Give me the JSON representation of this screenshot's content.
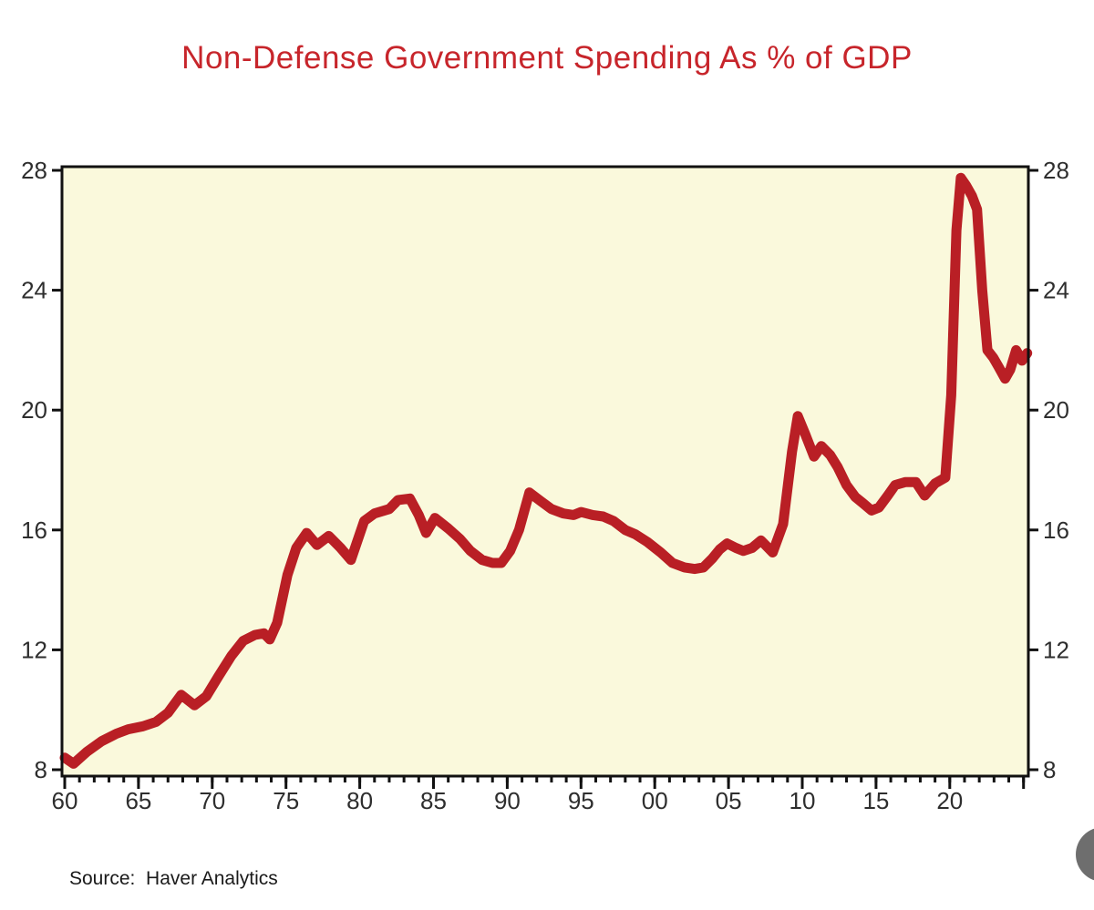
{
  "page": {
    "title": "Non-Defense Government Spending As % of GDP",
    "source_label": "Source:  Haver Analytics"
  },
  "chart_data": {
    "type": "line",
    "title": "Non-Defense Government Spending As % of GDP",
    "source": "Source:  Haver Analytics",
    "title_color": "#c7252b",
    "line_color": "#b91f25",
    "plot_bg_color": "#faf9dc",
    "frame_color": "#111111",
    "tick_label_color": "#2e2e2e",
    "grid": false,
    "legend": false,
    "x_axis": {
      "label": "",
      "min_year": 1960,
      "max_year": 2025.3,
      "major_tick_years": [
        1960,
        1965,
        1970,
        1975,
        1980,
        1985,
        1990,
        1995,
        2000,
        2005,
        2010,
        2015,
        2020,
        2025
      ],
      "major_tick_labels": [
        "60",
        "65",
        "70",
        "75",
        "80",
        "85",
        "90",
        "95",
        "00",
        "05",
        "10",
        "15",
        "20",
        ""
      ],
      "minor_tick_step_years": 1
    },
    "y_axis": {
      "label": "",
      "min": 8,
      "max": 28,
      "ticks": [
        8,
        12,
        16,
        20,
        24,
        28
      ],
      "tick_labels": [
        "8",
        "12",
        "16",
        "20",
        "24",
        "28"
      ],
      "sides": "both"
    },
    "series": [
      {
        "name": "Non-Defense Government Spending As % of GDP",
        "points": [
          [
            1960.0,
            8.4
          ],
          [
            1960.6,
            8.2
          ],
          [
            1961.5,
            8.6
          ],
          [
            1962.5,
            8.95
          ],
          [
            1963.5,
            9.2
          ],
          [
            1964.3,
            9.35
          ],
          [
            1965.3,
            9.45
          ],
          [
            1966.2,
            9.6
          ],
          [
            1967.0,
            9.9
          ],
          [
            1967.9,
            10.5
          ],
          [
            1968.8,
            10.15
          ],
          [
            1969.6,
            10.45
          ],
          [
            1970.4,
            11.1
          ],
          [
            1971.3,
            11.8
          ],
          [
            1972.1,
            12.3
          ],
          [
            1972.9,
            12.5
          ],
          [
            1973.5,
            12.55
          ],
          [
            1973.9,
            12.35
          ],
          [
            1974.4,
            12.9
          ],
          [
            1975.1,
            14.5
          ],
          [
            1975.7,
            15.4
          ],
          [
            1976.4,
            15.9
          ],
          [
            1977.1,
            15.5
          ],
          [
            1977.9,
            15.8
          ],
          [
            1978.7,
            15.4
          ],
          [
            1979.4,
            15.0
          ],
          [
            1980.3,
            16.3
          ],
          [
            1981.0,
            16.55
          ],
          [
            1982.0,
            16.7
          ],
          [
            1982.6,
            17.0
          ],
          [
            1983.4,
            17.05
          ],
          [
            1984.0,
            16.5
          ],
          [
            1984.5,
            15.9
          ],
          [
            1985.1,
            16.4
          ],
          [
            1986.0,
            16.05
          ],
          [
            1986.8,
            15.7
          ],
          [
            1987.5,
            15.3
          ],
          [
            1988.3,
            15.0
          ],
          [
            1989.0,
            14.9
          ],
          [
            1989.6,
            14.9
          ],
          [
            1990.2,
            15.3
          ],
          [
            1990.8,
            16.0
          ],
          [
            1991.5,
            17.25
          ],
          [
            1992.3,
            16.95
          ],
          [
            1993.0,
            16.7
          ],
          [
            1993.8,
            16.55
          ],
          [
            1994.5,
            16.5
          ],
          [
            1995.0,
            16.6
          ],
          [
            1995.8,
            16.5
          ],
          [
            1996.5,
            16.45
          ],
          [
            1997.2,
            16.3
          ],
          [
            1998.0,
            16.0
          ],
          [
            1998.7,
            15.85
          ],
          [
            1999.5,
            15.6
          ],
          [
            2000.4,
            15.25
          ],
          [
            2001.2,
            14.9
          ],
          [
            2002.0,
            14.75
          ],
          [
            2002.7,
            14.7
          ],
          [
            2003.3,
            14.75
          ],
          [
            2003.9,
            15.05
          ],
          [
            2004.4,
            15.35
          ],
          [
            2004.9,
            15.55
          ],
          [
            2005.5,
            15.4
          ],
          [
            2006.0,
            15.3
          ],
          [
            2006.6,
            15.4
          ],
          [
            2007.2,
            15.65
          ],
          [
            2008.0,
            15.25
          ],
          [
            2008.7,
            16.2
          ],
          [
            2009.3,
            18.6
          ],
          [
            2009.7,
            19.8
          ],
          [
            2010.2,
            19.2
          ],
          [
            2010.8,
            18.45
          ],
          [
            2011.3,
            18.8
          ],
          [
            2011.9,
            18.5
          ],
          [
            2012.4,
            18.1
          ],
          [
            2013.0,
            17.5
          ],
          [
            2013.6,
            17.1
          ],
          [
            2014.1,
            16.9
          ],
          [
            2014.7,
            16.65
          ],
          [
            2015.2,
            16.75
          ],
          [
            2015.8,
            17.15
          ],
          [
            2016.3,
            17.5
          ],
          [
            2017.0,
            17.6
          ],
          [
            2017.7,
            17.6
          ],
          [
            2018.3,
            17.15
          ],
          [
            2019.0,
            17.55
          ],
          [
            2019.7,
            17.75
          ],
          [
            2020.1,
            20.5
          ],
          [
            2020.45,
            26.0
          ],
          [
            2020.75,
            27.75
          ],
          [
            2021.1,
            27.5
          ],
          [
            2021.5,
            27.15
          ],
          [
            2021.85,
            26.7
          ],
          [
            2022.2,
            24.0
          ],
          [
            2022.55,
            22.0
          ],
          [
            2022.95,
            21.75
          ],
          [
            2023.3,
            21.45
          ],
          [
            2023.75,
            21.05
          ],
          [
            2024.1,
            21.35
          ],
          [
            2024.5,
            22.0
          ],
          [
            2024.9,
            21.65
          ],
          [
            2025.25,
            21.9
          ]
        ]
      }
    ]
  }
}
